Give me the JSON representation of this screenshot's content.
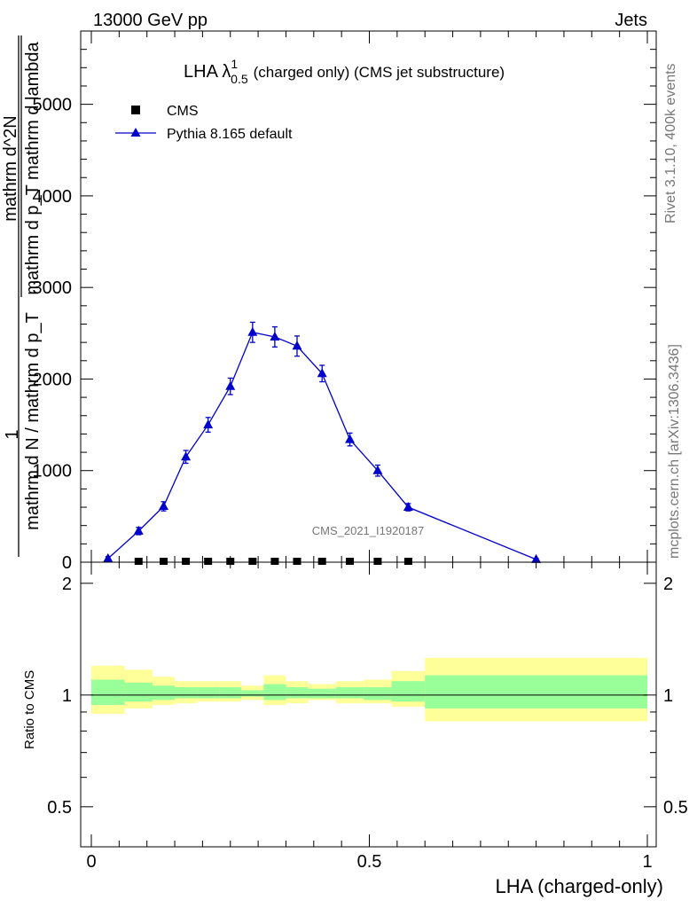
{
  "header": {
    "left": "13000 GeV pp",
    "right": "Jets"
  },
  "side": {
    "rivet": "Rivet 3.1.10,  400k events",
    "mcplots": "mcplots.cern.ch [arXiv:1306.3436]"
  },
  "watermark": "CMS_2021_I1920187",
  "chart_data": [
    {
      "type": "line",
      "title_main": "LHA λ",
      "title_sup": "1",
      "title_sub": "0.5",
      "title_rest": "(charged only) (CMS jet substructure)",
      "ylabel_num": "1",
      "ylabel_den": "mathrm d N / mathrm d p_T",
      "ylabel_right_num": "mathrm d^2N",
      "ylabel_right_den": "mathrm d p_T mathrm d lambda",
      "ylim": [
        0,
        5800
      ],
      "yticks": [
        0,
        1000,
        2000,
        3000,
        4000,
        5000
      ],
      "ytick_labels": [
        "0",
        "1000",
        "2000",
        "3000",
        "4000",
        "5000"
      ],
      "xlim": [
        -0.02,
        1.0
      ],
      "legend": [
        {
          "name": "CMS",
          "marker": "square",
          "color": "#000000"
        },
        {
          "name": "Pythia 8.165 default",
          "marker": "triangle",
          "color": "#0000cc"
        }
      ],
      "series": [
        {
          "name": "CMS",
          "x": [
            0.085,
            0.13,
            0.17,
            0.21,
            0.25,
            0.29,
            0.33,
            0.37,
            0.415,
            0.465,
            0.515,
            0.57
          ],
          "y": [
            0,
            0,
            0,
            0,
            0,
            0,
            0,
            0,
            0,
            0,
            0,
            0
          ]
        },
        {
          "name": "Pythia 8.165 default",
          "x": [
            0.03,
            0.085,
            0.13,
            0.17,
            0.21,
            0.25,
            0.29,
            0.33,
            0.37,
            0.415,
            0.465,
            0.515,
            0.57,
            0.8
          ],
          "y": [
            40,
            340,
            610,
            1150,
            1500,
            1920,
            2510,
            2460,
            2360,
            2060,
            1340,
            1000,
            600,
            30
          ],
          "err": [
            20,
            40,
            50,
            70,
            80,
            90,
            110,
            110,
            110,
            90,
            70,
            60,
            40,
            10
          ]
        }
      ]
    },
    {
      "type": "area",
      "ylabel": "Ratio to CMS",
      "xlabel": "LHA (charged-only)",
      "ylim": [
        0.39,
        2.28
      ],
      "yticks": [
        0.5,
        1,
        2
      ],
      "ytick_labels": [
        "0.5",
        "1",
        "2"
      ],
      "xticks": [
        0,
        0.5,
        1
      ],
      "xtick_labels": [
        "0",
        "0.5",
        "1"
      ],
      "bins": [
        {
          "x0": 0.0,
          "x1": 0.06,
          "yellow": [
            0.89,
            1.2
          ],
          "green": [
            0.94,
            1.1
          ]
        },
        {
          "x0": 0.06,
          "x1": 0.11,
          "yellow": [
            0.92,
            1.17
          ],
          "green": [
            0.96,
            1.08
          ]
        },
        {
          "x0": 0.11,
          "x1": 0.15,
          "yellow": [
            0.94,
            1.12
          ],
          "green": [
            0.97,
            1.06
          ]
        },
        {
          "x0": 0.15,
          "x1": 0.19,
          "yellow": [
            0.95,
            1.09
          ],
          "green": [
            0.98,
            1.05
          ]
        },
        {
          "x0": 0.19,
          "x1": 0.23,
          "yellow": [
            0.96,
            1.09
          ],
          "green": [
            0.98,
            1.05
          ]
        },
        {
          "x0": 0.23,
          "x1": 0.27,
          "yellow": [
            0.96,
            1.09
          ],
          "green": [
            0.98,
            1.05
          ]
        },
        {
          "x0": 0.27,
          "x1": 0.31,
          "yellow": [
            0.97,
            1.06
          ],
          "green": [
            0.99,
            1.03
          ]
        },
        {
          "x0": 0.31,
          "x1": 0.35,
          "yellow": [
            0.94,
            1.13
          ],
          "green": [
            0.97,
            1.07
          ]
        },
        {
          "x0": 0.35,
          "x1": 0.39,
          "yellow": [
            0.95,
            1.09
          ],
          "green": [
            0.98,
            1.05
          ]
        },
        {
          "x0": 0.39,
          "x1": 0.44,
          "yellow": [
            0.97,
            1.07
          ],
          "green": [
            0.98,
            1.04
          ]
        },
        {
          "x0": 0.44,
          "x1": 0.49,
          "yellow": [
            0.95,
            1.09
          ],
          "green": [
            0.98,
            1.05
          ]
        },
        {
          "x0": 0.49,
          "x1": 0.54,
          "yellow": [
            0.95,
            1.1
          ],
          "green": [
            0.97,
            1.05
          ]
        },
        {
          "x0": 0.54,
          "x1": 0.6,
          "yellow": [
            0.93,
            1.16
          ],
          "green": [
            0.96,
            1.09
          ]
        },
        {
          "x0": 0.6,
          "x1": 1.0,
          "yellow": [
            0.85,
            1.26
          ],
          "green": [
            0.92,
            1.13
          ]
        }
      ],
      "band_colors": {
        "yellow": "#ffff99",
        "green": "#99ff99"
      },
      "reference_line": 1
    }
  ]
}
